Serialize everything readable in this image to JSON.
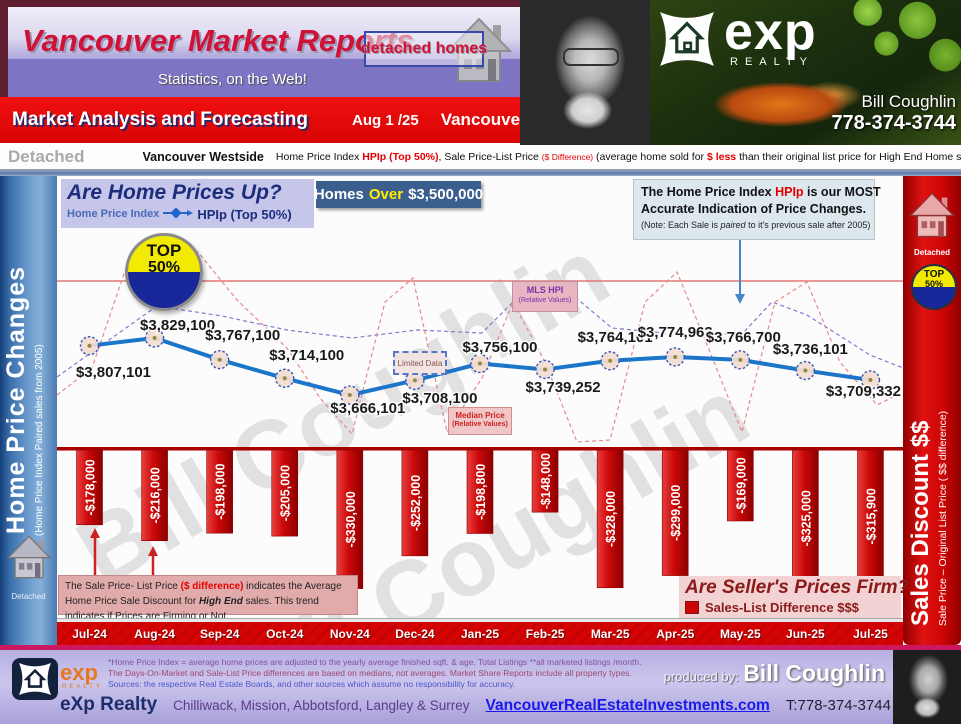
{
  "header": {
    "title": "Vancouver Market Reports",
    "subtitle": "Statistics, on the Web!",
    "badge": "detached homes",
    "brand_word": "exp",
    "brand_sub": "REALTY",
    "agent_name": "Bill Coughlin",
    "agent_phone": "778-374-3744"
  },
  "banner": {
    "title": "Market Analysis and Forecasting",
    "date": "Aug 1 /25",
    "region": "Vancouver Westside"
  },
  "info_bar": {
    "property_type": "Detached",
    "region": "Vancouver Westside",
    "t1": "Home Price Index ",
    "red1": "HPIp (Top 50%)",
    "t2": ", Sale Price-List Price ",
    "red2": "($ Difference)",
    "t3": " (average home sold for ",
    "red3": "$ less",
    "t4": " than their original list price for High End Home sales)"
  },
  "left_sidebar": {
    "title": "Home Price Changes",
    "subtitle": "(Home Price Index Paired sales from 2005)",
    "icon_label": "Detached"
  },
  "right_sidebar": {
    "title": "Sales Discount $$",
    "subtitle": "Sale Price – Original List Price ( $$ difference)",
    "icon_label": "Detached",
    "pie_top": "TOP",
    "pie_pct": "50%"
  },
  "chart_header": {
    "question": "Are Home Prices Up?",
    "legend_label": "Home Price Index",
    "legend_series": "HPIp (Top 50%)",
    "homes_word": "Homes",
    "over_word": "Over",
    "homes_value": "$3,500,000"
  },
  "pie": {
    "top": "TOP",
    "pct": "50%"
  },
  "callout": {
    "l1a": "The Home Price Index ",
    "l1b": "HPIp",
    "l1c": " is our MOST",
    "l2": "Accurate Indication of Price Changes.",
    "n1": "(Note: Each Sale is ",
    "n2": "paired",
    "n3": " to it's previous sale after 2005)"
  },
  "annotations": {
    "mls_hpi": "MLS HPI",
    "mls_hpi_sub": "(Relative Values)",
    "limited_data": "Limited Data",
    "median_price": "Median Price",
    "median_price_sub": "(Relative Values)"
  },
  "bars_note": {
    "t1": "The  Sale Price- List Price ",
    "red1": "($ difference)",
    "t2": " indicates the Average Home Price Sale Discount for ",
    "hi": "High End",
    "t3": " sales. This trend indicates if Prices are Firming or Not."
  },
  "sellers_box": {
    "question": "Are Seller's Prices Firm?",
    "legend": "Sales-List Difference $$$"
  },
  "chart_data": {
    "type": "combo",
    "categories": [
      "Jul-24",
      "Aug-24",
      "Sep-24",
      "Oct-24",
      "Nov-24",
      "Dec-24",
      "Jan-25",
      "Feb-25",
      "Mar-25",
      "Apr-25",
      "May-25",
      "Jun-25",
      "Jul-25"
    ],
    "series": [
      {
        "name": "HPIp (Top 50%)",
        "type": "line",
        "color": "#1b75c8",
        "values": [
          3807101,
          3829100,
          3767100,
          3714100,
          3666101,
          3708100,
          3756100,
          3739252,
          3764101,
          3774963,
          3766700,
          3736101,
          3709332
        ],
        "labels": [
          "$3,807,101",
          "$3,829,100",
          "$3,767,100",
          "$3,714,100",
          "$3,666,101",
          "$3,708,100",
          "$3,756,100",
          "$3,739,252",
          "$3,764,101",
          "$3,774,963",
          "$3,766,700",
          "$3,736,101",
          "$3,709,332"
        ]
      },
      {
        "name": "Sales-List Difference $$$",
        "type": "bar",
        "color": "#cc0404",
        "values": [
          -178000,
          -216000,
          -198000,
          -205000,
          -330000,
          -252000,
          -198800,
          -148000,
          -328000,
          -299000,
          -169000,
          -325000,
          -315900
        ],
        "labels": [
          "-$178,000",
          "-$216,000",
          "-$198,000",
          "-$205,000",
          "-$330,000",
          "-$252,000",
          "-$198,800",
          "-$148,000",
          "-$328,000",
          "-$299,000",
          "-$169,000",
          "-$325,000",
          "-$315,900"
        ]
      }
    ],
    "legend_position": "bottom-right",
    "grid": false
  },
  "watermark": "Bill Coughlin",
  "footer": {
    "disclaimer1": "*Home Price Index = average home prices are adjusted to the yearly average finished sqft. & age.  Total Listings **all marketed listings /month.",
    "disclaimer2": "The Days-On-Market and Sale-List Price differences are based on medians, not averages. Market Share Reports include all property types.",
    "disclaimer3": "Sources:  the respective Real Estate Boards, and other sources which assume no responsibility for accuracy.",
    "produced_by": "produced by:",
    "producer": "Bill Coughlin",
    "brand": "eXp Realty",
    "areas": "Chilliwack, Mission, Abbotsford, Langley & Surrey",
    "website": "VancouverRealEstateInvestments.com",
    "phone": "T:778-374-3744"
  }
}
